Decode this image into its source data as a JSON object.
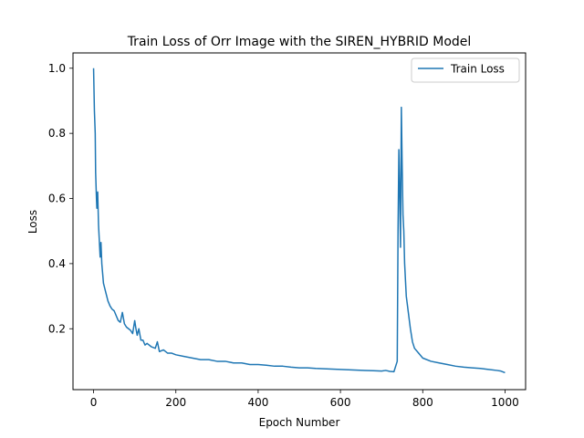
{
  "chart_data": {
    "type": "line",
    "title": "Train Loss of Orr Image with the SIREN_HYBRID Model",
    "xlabel": "Epoch Number",
    "ylabel": "Loss",
    "xlim": [
      -50,
      1050
    ],
    "ylim": [
      0.013,
      1.047
    ],
    "xticks": [
      0,
      200,
      400,
      600,
      800,
      1000
    ],
    "xtick_labels": [
      "0",
      "200",
      "400",
      "600",
      "800",
      "1000"
    ],
    "yticks": [
      0.2,
      0.4,
      0.6,
      0.8,
      1.0
    ],
    "ytick_labels": [
      "0.2",
      "0.4",
      "0.6",
      "0.8",
      "1.0"
    ],
    "grid": false,
    "legend_position": "upper right",
    "series": [
      {
        "name": "Train Loss",
        "color": "#1f77b4",
        "x": [
          0,
          2,
          4,
          5,
          7,
          8,
          10,
          12,
          14,
          16,
          18,
          20,
          22,
          24,
          27,
          30,
          35,
          40,
          45,
          50,
          55,
          60,
          65,
          70,
          75,
          80,
          85,
          90,
          95,
          100,
          103,
          106,
          110,
          115,
          120,
          125,
          130,
          140,
          150,
          155,
          160,
          170,
          180,
          190,
          200,
          220,
          240,
          260,
          280,
          300,
          320,
          340,
          360,
          380,
          400,
          420,
          440,
          460,
          480,
          500,
          520,
          540,
          560,
          580,
          600,
          620,
          640,
          660,
          680,
          700,
          710,
          720,
          730,
          738,
          740,
          742,
          744,
          746,
          748,
          750,
          752,
          754,
          756,
          758,
          760,
          765,
          770,
          775,
          780,
          790,
          800,
          820,
          840,
          860,
          880,
          900,
          920,
          940,
          960,
          980,
          990,
          1000
        ],
        "y": [
          1.0,
          0.87,
          0.8,
          0.68,
          0.6,
          0.57,
          0.62,
          0.52,
          0.47,
          0.42,
          0.465,
          0.4,
          0.37,
          0.34,
          0.325,
          0.31,
          0.285,
          0.27,
          0.26,
          0.255,
          0.24,
          0.225,
          0.22,
          0.25,
          0.215,
          0.205,
          0.2,
          0.195,
          0.185,
          0.225,
          0.2,
          0.18,
          0.2,
          0.165,
          0.165,
          0.15,
          0.155,
          0.145,
          0.14,
          0.16,
          0.13,
          0.135,
          0.125,
          0.125,
          0.12,
          0.115,
          0.11,
          0.105,
          0.105,
          0.1,
          0.1,
          0.095,
          0.095,
          0.09,
          0.09,
          0.088,
          0.085,
          0.085,
          0.082,
          0.08,
          0.08,
          0.078,
          0.077,
          0.076,
          0.075,
          0.074,
          0.073,
          0.072,
          0.071,
          0.07,
          0.072,
          0.069,
          0.068,
          0.1,
          0.5,
          0.75,
          0.62,
          0.45,
          0.88,
          0.7,
          0.55,
          0.5,
          0.4,
          0.35,
          0.3,
          0.25,
          0.2,
          0.16,
          0.14,
          0.125,
          0.11,
          0.1,
          0.095,
          0.09,
          0.085,
          0.082,
          0.08,
          0.078,
          0.075,
          0.072,
          0.07,
          0.065
        ]
      }
    ]
  }
}
